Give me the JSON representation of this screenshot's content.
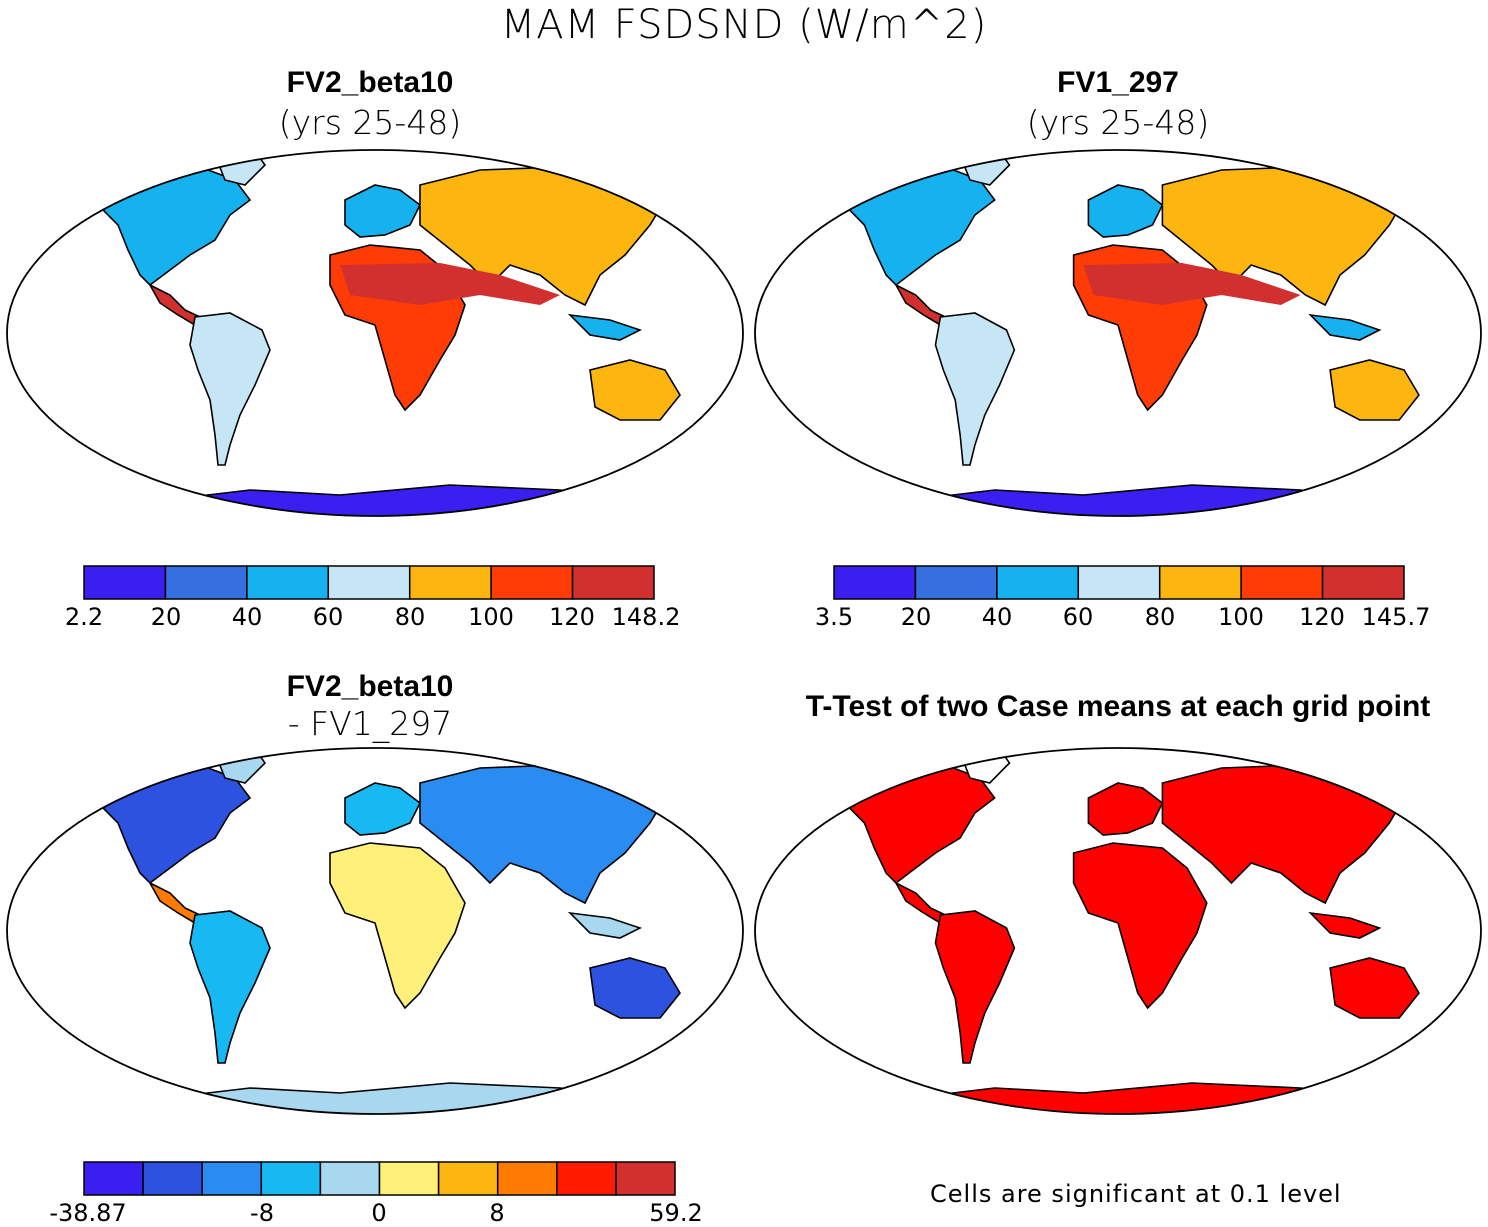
{
  "figure": {
    "title": "MAM FSDSND (W/m^2)"
  },
  "chart_data": [
    {
      "type": "heatmap",
      "panel": "top-left",
      "title": "FV2_beta10",
      "subtitle": "(yrs 25-48)",
      "projection": "robinson",
      "colorbar": {
        "labels": [
          "2.2",
          "20",
          "40",
          "60",
          "80",
          "100",
          "120",
          "148.2"
        ],
        "levels": [
          2.2,
          20,
          40,
          60,
          80,
          100,
          120,
          148.2
        ],
        "colors": [
          "#3b1ef0",
          "#356fe0",
          "#16b2f0",
          "#c6e6f6",
          "#fdb60f",
          "#ff3c05",
          "#d2302e"
        ]
      }
    },
    {
      "type": "heatmap",
      "panel": "top-right",
      "title": "FV1_297",
      "subtitle": "(yrs 25-48)",
      "projection": "robinson",
      "colorbar": {
        "labels": [
          "3.5",
          "20",
          "40",
          "60",
          "80",
          "100",
          "120",
          "145.7"
        ],
        "levels": [
          3.5,
          20,
          40,
          60,
          80,
          100,
          120,
          145.7
        ],
        "colors": [
          "#3b1ef0",
          "#356fe0",
          "#16b2f0",
          "#c6e6f6",
          "#fdb60f",
          "#ff3c05",
          "#d2302e"
        ]
      }
    },
    {
      "type": "heatmap",
      "panel": "bottom-left",
      "title": "FV2_beta10",
      "subtitle": "- FV1_297",
      "projection": "robinson",
      "colorbar": {
        "labels": [
          "-38.87",
          "-8",
          "0",
          "8",
          "59.2"
        ],
        "colors": [
          "#3b1ef0",
          "#2e52e0",
          "#2a8cf0",
          "#18b8f2",
          "#a8d8f0",
          "#fff07a",
          "#fdb60f",
          "#ff7a00",
          "#ff1a00",
          "#d2302e"
        ]
      }
    },
    {
      "type": "heatmap",
      "panel": "bottom-right",
      "title": "T-Test of two Case means at each grid point",
      "projection": "robinson",
      "note": "Cells are significant at 0.1 level",
      "color": "#ff0000"
    }
  ]
}
